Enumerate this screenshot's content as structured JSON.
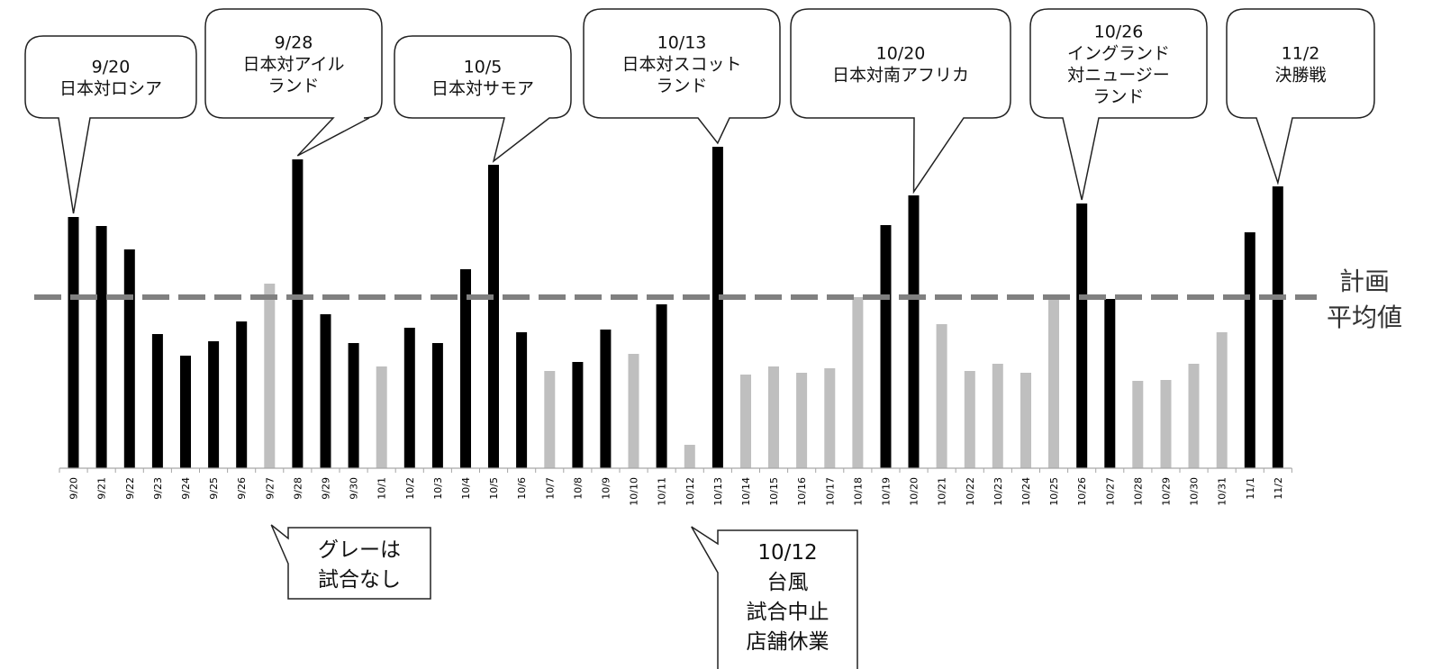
{
  "chart_data": {
    "type": "bar",
    "categories": [
      "9/20",
      "9/21",
      "9/22",
      "9/23",
      "9/24",
      "9/25",
      "9/26",
      "9/27",
      "9/28",
      "9/29",
      "9/30",
      "10/1",
      "10/2",
      "10/3",
      "10/4",
      "10/5",
      "10/6",
      "10/7",
      "10/8",
      "10/9",
      "10/10",
      "10/11",
      "10/12",
      "10/13",
      "10/14",
      "10/15",
      "10/16",
      "10/17",
      "10/18",
      "10/19",
      "10/20",
      "10/21",
      "10/22",
      "10/23",
      "10/24",
      "10/25",
      "10/26",
      "10/27",
      "10/28",
      "10/29",
      "10/30",
      "10/31",
      "11/1",
      "11/2"
    ],
    "values": [
      279,
      269,
      243,
      149,
      125,
      141,
      163,
      205,
      343,
      171,
      139,
      113,
      156,
      139,
      221,
      337,
      151,
      108,
      118,
      154,
      127,
      182,
      26,
      357,
      104,
      113,
      106,
      111,
      190,
      270,
      303,
      160,
      108,
      116,
      106,
      193,
      294,
      188,
      97,
      98,
      116,
      151,
      262,
      313
    ],
    "has_match": [
      true,
      true,
      true,
      true,
      true,
      true,
      true,
      false,
      true,
      true,
      true,
      false,
      true,
      true,
      true,
      true,
      true,
      false,
      true,
      true,
      false,
      true,
      false,
      true,
      false,
      false,
      false,
      false,
      false,
      true,
      true,
      false,
      false,
      false,
      false,
      false,
      true,
      true,
      false,
      false,
      false,
      false,
      true,
      true
    ],
    "reference_line": {
      "value": 190,
      "label_lines": [
        "計画",
        "平均値"
      ]
    },
    "ylim": [
      0,
      400
    ],
    "grid": false,
    "colors": {
      "match_day": "#000000",
      "no_match_day": "#bfbfbf",
      "reference_line": "#808080"
    },
    "annotations": [
      {
        "category": "9/20",
        "lines": [
          "9/20",
          "日本対ロシア"
        ]
      },
      {
        "category": "9/28",
        "lines": [
          "9/28",
          "日本対アイル",
          "ランド"
        ]
      },
      {
        "category": "10/5",
        "lines": [
          "10/5",
          "日本対サモア"
        ]
      },
      {
        "category": "10/13",
        "lines": [
          "10/13",
          "日本対スコット",
          "ランド"
        ]
      },
      {
        "category": "10/20",
        "lines": [
          "10/20",
          "日本対南アフリカ"
        ]
      },
      {
        "category": "10/26",
        "lines": [
          "10/26",
          "イングランド",
          "対ニュージー",
          "ランド"
        ]
      },
      {
        "category": "11/2",
        "lines": [
          "11/2",
          "決勝戦"
        ]
      }
    ],
    "notes": [
      {
        "category": "9/27",
        "lines": [
          "グレーは",
          "試合なし"
        ]
      },
      {
        "category": "10/12",
        "lines": [
          "10/12",
          "台風",
          "試合中止",
          "店舗休業"
        ]
      }
    ]
  }
}
